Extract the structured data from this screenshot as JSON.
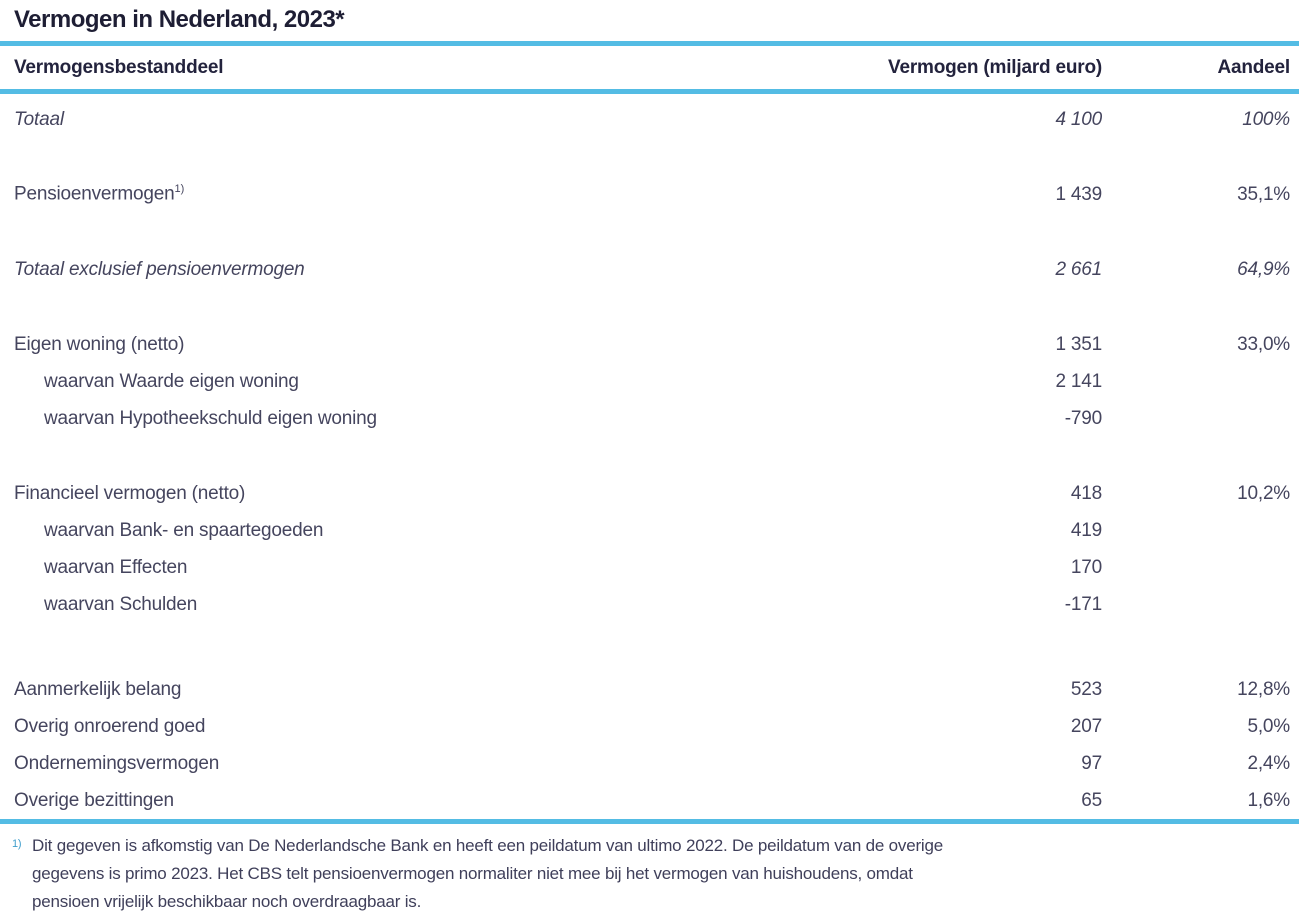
{
  "title": "Vermogen in Nederland, 2023*",
  "table": {
    "columns": {
      "component": "Vermogensbestanddeel",
      "amount": "Vermogen (miljard euro)",
      "share": "Aandeel"
    },
    "rows": [
      {
        "label": "Totaal",
        "amount": "4 100",
        "share": "100%"
      },
      {
        "label": "Pensioenvermogen",
        "sup": "1)",
        "amount": "1 439",
        "share": "35,1%"
      },
      {
        "label": "Totaal exclusief pensioenvermogen",
        "amount": "2 661",
        "share": "64,9%"
      },
      {
        "label": "Eigen woning (netto)",
        "amount": "1 351",
        "share": "33,0%"
      },
      {
        "label": "waarvan Waarde eigen woning",
        "amount": "2 141",
        "share": ""
      },
      {
        "label": "waarvan Hypotheekschuld eigen woning",
        "amount": "-790",
        "share": ""
      },
      {
        "label": "Financieel vermogen (netto)",
        "amount": "418",
        "share": "10,2%"
      },
      {
        "label": "waarvan Bank- en spaartegoeden",
        "amount": "419",
        "share": ""
      },
      {
        "label": "waarvan Effecten",
        "amount": "170",
        "share": ""
      },
      {
        "label": "waarvan Schulden",
        "amount": "-171",
        "share": ""
      },
      {
        "label": "Aanmerkelijk belang",
        "amount": "523",
        "share": "12,8%"
      },
      {
        "label": "Overig onroerend goed",
        "amount": "207",
        "share": "5,0%"
      },
      {
        "label": "Ondernemingsvermogen",
        "amount": "97",
        "share": "2,4%"
      },
      {
        "label": "Overige bezittingen",
        "amount": "65",
        "share": "1,6%"
      }
    ]
  },
  "footnote": {
    "marker": "1)",
    "lines": [
      "Dit gegeven is afkomstig van De Nederlandsche Bank en heeft een peildatum van ultimo 2022. De peildatum van de overige",
      "gegevens is primo 2023. Het CBS telt pensioenvermogen normaliter niet mee bij het vermogen van huishoudens, omdat",
      "pensioen vrijelijk beschikbaar noch overdraagbaar is."
    ]
  },
  "colors": {
    "rule_blue": "#54bce4",
    "title_text": "#1e1e34",
    "body_text": "#45455e"
  }
}
